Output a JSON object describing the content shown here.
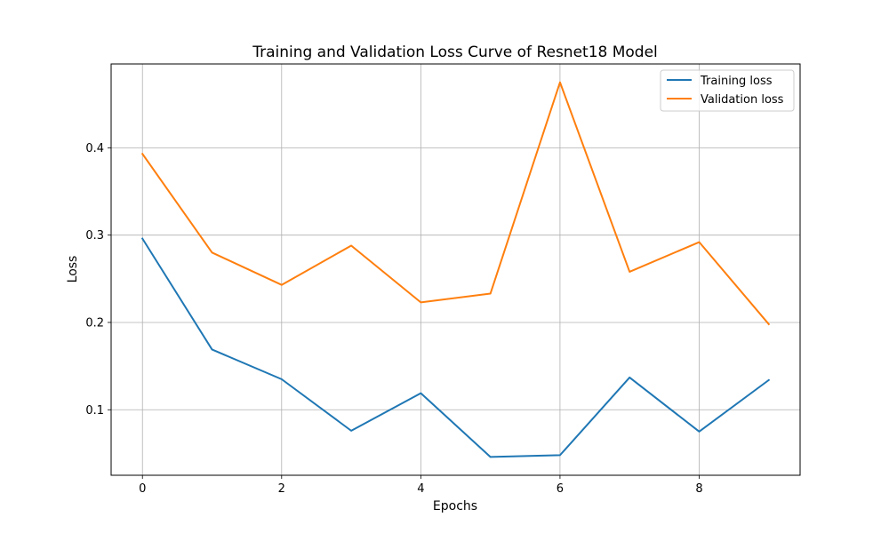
{
  "chart_data": {
    "type": "line",
    "title": "Training and Validation Loss Curve of Resnet18 Model",
    "xlabel": "Epochs",
    "ylabel": "Loss",
    "x": [
      0,
      1,
      2,
      3,
      4,
      5,
      6,
      7,
      8,
      9
    ],
    "x_ticks": [
      0,
      2,
      4,
      6,
      8
    ],
    "x_tick_labels": [
      "0",
      "2",
      "4",
      "6",
      "8"
    ],
    "y_ticks": [
      0.1,
      0.2,
      0.3,
      0.4
    ],
    "y_tick_labels": [
      "0.1",
      "0.2",
      "0.3",
      "0.4"
    ],
    "xlim": [
      -0.45,
      9.45
    ],
    "ylim": [
      0.025,
      0.496
    ],
    "grid": true,
    "legend_position": "top-right",
    "series": [
      {
        "name": "Training loss",
        "color": "#1f77b4",
        "values": [
          0.296,
          0.169,
          0.135,
          0.076,
          0.119,
          0.046,
          0.048,
          0.137,
          0.075,
          0.134
        ]
      },
      {
        "name": "Validation loss",
        "color": "#ff7f0e",
        "values": [
          0.393,
          0.28,
          0.243,
          0.288,
          0.223,
          0.233,
          0.475,
          0.258,
          0.292,
          0.198
        ]
      }
    ]
  }
}
